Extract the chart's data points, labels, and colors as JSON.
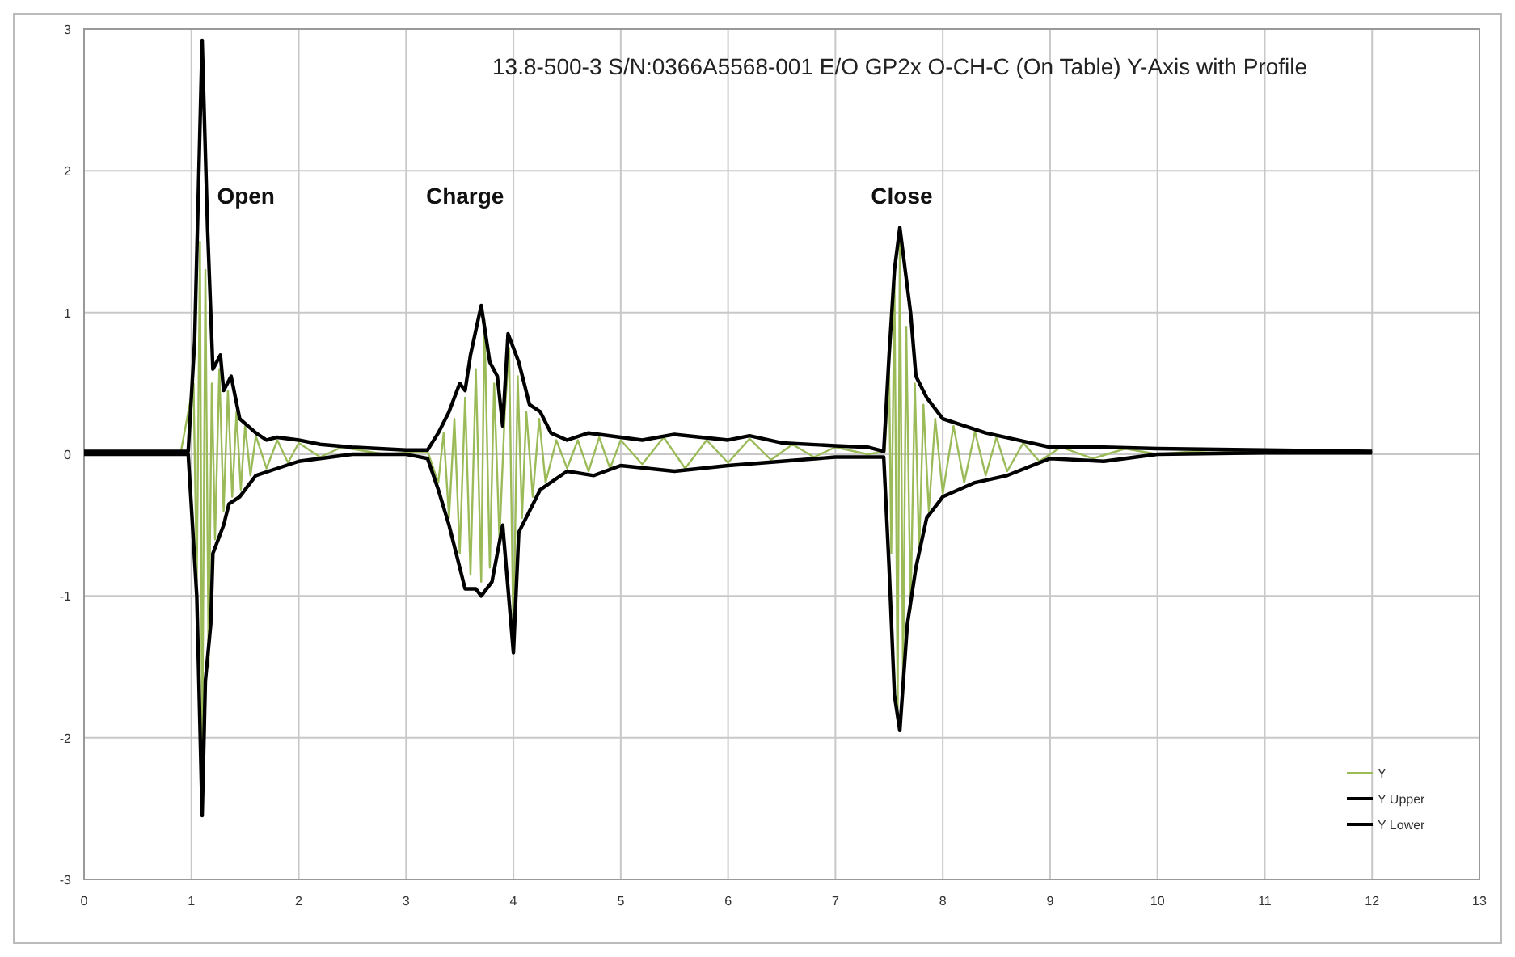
{
  "chart_data": {
    "type": "line",
    "title": "13.8-500-3 S/N:0366A5568-001 E/O GP2x O-CH-C (On Table) Y-Axis with Profile",
    "xlim": [
      0,
      13
    ],
    "xticks": [
      0,
      1,
      2,
      3,
      4,
      5,
      6,
      7,
      8,
      9,
      10,
      11,
      12,
      13
    ],
    "ylim": [
      -3,
      3
    ],
    "yticks": [
      -3,
      -2,
      -1,
      0,
      1,
      2,
      3
    ],
    "grid": true,
    "legend": "bottom right",
    "marker": "none",
    "annotations": [
      "Open",
      "Charge",
      "Close"
    ],
    "series": [
      {
        "name": "Y",
        "color": "#9bbb59",
        "x": [
          0,
          0.9,
          1.02,
          1.05,
          1.08,
          1.1,
          1.13,
          1.16,
          1.19,
          1.22,
          1.26,
          1.3,
          1.34,
          1.38,
          1.42,
          1.46,
          1.5,
          1.55,
          1.6,
          1.7,
          1.8,
          1.9,
          2.0,
          2.2,
          2.4,
          2.8,
          3.2,
          3.3,
          3.35,
          3.4,
          3.45,
          3.5,
          3.55,
          3.6,
          3.65,
          3.7,
          3.73,
          3.78,
          3.82,
          3.87,
          3.92,
          3.96,
          4.0,
          4.04,
          4.08,
          4.12,
          4.18,
          4.24,
          4.3,
          4.4,
          4.5,
          4.6,
          4.7,
          4.8,
          4.9,
          5.0,
          5.2,
          5.4,
          5.6,
          5.8,
          6.0,
          6.2,
          6.4,
          6.6,
          6.8,
          7.0,
          7.3,
          7.46,
          7.5,
          7.52,
          7.55,
          7.58,
          7.6,
          7.63,
          7.66,
          7.7,
          7.74,
          7.78,
          7.82,
          7.87,
          7.93,
          8.0,
          8.1,
          8.2,
          8.3,
          8.4,
          8.5,
          8.6,
          8.75,
          8.9,
          9.1,
          9.4,
          9.7,
          10.0,
          10.5,
          11.0,
          11.5,
          12.0
        ],
        "values": [
          0.02,
          0.01,
          0.5,
          -0.9,
          1.5,
          -2.2,
          1.3,
          -1.5,
          0.5,
          -0.6,
          0.6,
          -0.4,
          0.45,
          -0.3,
          0.3,
          -0.25,
          0.2,
          -0.15,
          0.13,
          -0.1,
          0.1,
          -0.06,
          0.08,
          -0.02,
          0.05,
          0.0,
          0.02,
          -0.2,
          0.15,
          -0.45,
          0.25,
          -0.7,
          0.4,
          -0.85,
          0.6,
          -0.9,
          0.95,
          -0.8,
          0.5,
          -0.6,
          0.3,
          0.75,
          -1.3,
          0.55,
          -0.45,
          0.3,
          -0.3,
          0.25,
          -0.2,
          0.1,
          -0.1,
          0.1,
          -0.12,
          0.12,
          -0.1,
          0.1,
          -0.07,
          0.12,
          -0.1,
          0.1,
          -0.06,
          0.11,
          -0.04,
          0.07,
          -0.02,
          0.05,
          0.0,
          0.02,
          0.6,
          -0.7,
          1.2,
          -1.8,
          1.5,
          -1.6,
          0.9,
          -1.1,
          0.5,
          -0.7,
          0.35,
          -0.4,
          0.25,
          -0.28,
          0.2,
          -0.2,
          0.16,
          -0.15,
          0.12,
          -0.12,
          0.08,
          -0.05,
          0.05,
          -0.03,
          0.04,
          0.0,
          0.03,
          0.01,
          0.02,
          0.01
        ]
      },
      {
        "name": "Y Upper",
        "color": "#000000",
        "x": [
          0,
          0.97,
          1.03,
          1.1,
          1.15,
          1.2,
          1.27,
          1.3,
          1.37,
          1.45,
          1.6,
          1.7,
          1.8,
          2.0,
          2.2,
          2.5,
          3.0,
          3.2,
          3.3,
          3.4,
          3.5,
          3.55,
          3.6,
          3.7,
          3.78,
          3.85,
          3.9,
          3.95,
          4.05,
          4.15,
          4.25,
          4.35,
          4.5,
          4.7,
          5.0,
          5.2,
          5.5,
          6.0,
          6.2,
          6.5,
          7.0,
          7.3,
          7.45,
          7.5,
          7.55,
          7.6,
          7.7,
          7.75,
          7.85,
          8.0,
          8.2,
          8.4,
          8.7,
          9.0,
          9.5,
          10.0,
          11.0,
          12.0
        ],
        "values": [
          0.02,
          0.02,
          0.8,
          2.92,
          1.6,
          0.6,
          0.7,
          0.45,
          0.55,
          0.25,
          0.15,
          0.1,
          0.12,
          0.1,
          0.07,
          0.05,
          0.03,
          0.03,
          0.15,
          0.3,
          0.5,
          0.45,
          0.7,
          1.05,
          0.65,
          0.55,
          0.2,
          0.85,
          0.65,
          0.35,
          0.3,
          0.15,
          0.1,
          0.15,
          0.12,
          0.1,
          0.14,
          0.1,
          0.13,
          0.08,
          0.06,
          0.05,
          0.02,
          0.7,
          1.3,
          1.6,
          1.0,
          0.55,
          0.4,
          0.25,
          0.2,
          0.15,
          0.1,
          0.05,
          0.05,
          0.04,
          0.03,
          0.02
        ]
      },
      {
        "name": "Y Lower",
        "color": "#000000",
        "x": [
          0,
          0.97,
          1.05,
          1.1,
          1.13,
          1.18,
          1.2,
          1.3,
          1.35,
          1.45,
          1.6,
          1.8,
          2.0,
          2.5,
          3.0,
          3.2,
          3.3,
          3.4,
          3.5,
          3.55,
          3.65,
          3.7,
          3.8,
          3.9,
          4.0,
          4.05,
          4.15,
          4.25,
          4.5,
          4.75,
          5.0,
          5.5,
          6.0,
          6.5,
          7.0,
          7.45,
          7.5,
          7.55,
          7.6,
          7.67,
          7.75,
          7.85,
          8.0,
          8.3,
          8.6,
          9.0,
          9.5,
          10.0,
          11.0,
          12.0
        ],
        "values": [
          0.0,
          0.0,
          -1.0,
          -2.55,
          -1.6,
          -1.2,
          -0.7,
          -0.5,
          -0.35,
          -0.3,
          -0.15,
          -0.1,
          -0.05,
          0.0,
          0.0,
          -0.03,
          -0.25,
          -0.5,
          -0.8,
          -0.95,
          -0.95,
          -1.0,
          -0.9,
          -0.5,
          -1.4,
          -0.55,
          -0.4,
          -0.25,
          -0.12,
          -0.15,
          -0.08,
          -0.12,
          -0.08,
          -0.05,
          -0.02,
          -0.02,
          -0.8,
          -1.7,
          -1.95,
          -1.2,
          -0.8,
          -0.45,
          -0.3,
          -0.2,
          -0.15,
          -0.03,
          -0.05,
          0.0,
          0.01,
          0.01
        ]
      }
    ]
  }
}
